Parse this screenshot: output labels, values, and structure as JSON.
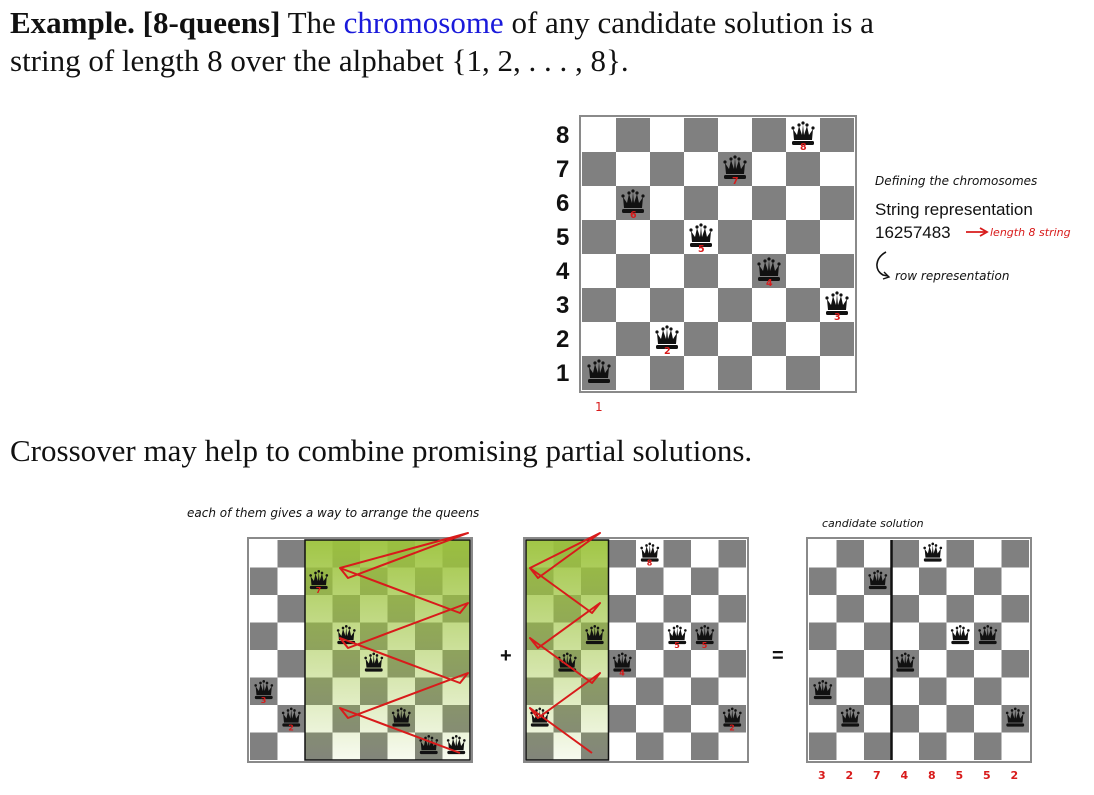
{
  "intro": {
    "example_label": "Example.",
    "problem_tag": "[8-queens]",
    "text_before_link": "The",
    "link_text": "chromosome",
    "text_after_link": "of any candidate solution is a",
    "line2": "string of length 8 over the alphabet {1, 2, . . . , 8}.",
    "link_color": "#1a1adb"
  },
  "main_board": {
    "rank_labels": [
      "8",
      "7",
      "6",
      "5",
      "4",
      "3",
      "2",
      "1"
    ],
    "queen_rows": [
      1,
      6,
      2,
      5,
      7,
      4,
      8,
      3
    ],
    "queen_handwritten_labels": [
      "",
      "6",
      "2",
      "5",
      "7",
      "4",
      "8",
      "3"
    ],
    "column_one_mark": "1",
    "colors": {
      "dark": "#808080",
      "light": "#ffffff",
      "border": "#8a8a8a"
    }
  },
  "side_notes": {
    "title_handwritten": "Defining the chromosomes",
    "line1": "String representation",
    "line2": "16257483",
    "line2_annotation": "length 8 string",
    "line3_annotation": "row representation"
  },
  "crossover": {
    "sentence": "Crossover may help to combine promising partial solutions.",
    "note_left": "each of them gives a way to arrange the queens",
    "note_right": "candidate solution",
    "plus": "+",
    "equals": "=",
    "parent1": {
      "queen_rows": [
        3,
        2,
        7,
        5,
        4,
        2,
        1,
        1
      ],
      "labels": [
        "3",
        "2",
        "7",
        "",
        "",
        "",
        "",
        ""
      ],
      "highlight_cols": [
        3,
        8
      ]
    },
    "parent2": {
      "queen_rows": [
        2,
        4,
        5,
        4,
        8,
        5,
        5,
        2
      ],
      "labels": [
        "",
        "",
        "",
        "4",
        "8",
        "5",
        "5",
        "2"
      ],
      "highlight_cols": [
        1,
        3
      ]
    },
    "child": {
      "queen_rows": [
        3,
        2,
        7,
        4,
        8,
        5,
        5,
        2
      ],
      "digits": [
        "3",
        "2",
        "7",
        "4",
        "8",
        "5",
        "5",
        "2"
      ],
      "split_after_col": 3
    },
    "colors": {
      "highlight": "#9cc33c",
      "scribble": "#d81b1b"
    }
  }
}
